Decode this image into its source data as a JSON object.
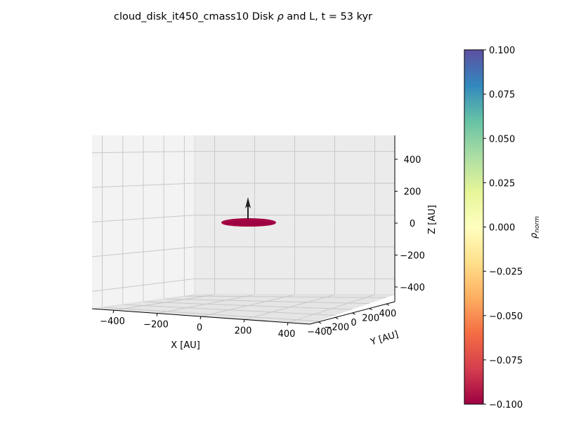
{
  "chart_data": {
    "type": "scatter",
    "projection": "3d",
    "title": "cloud_disk_it450_cmass10 Disk ρ and L, t = 53 kyr",
    "title_parts": {
      "prefix": "cloud_disk_it450_cmass10 Disk ",
      "symbol": "ρ",
      "suffix": " and L, t = 53 kyr"
    },
    "xlabel": "X [AU]",
    "ylabel": "Y [AU]",
    "zlabel": "Z [AU]",
    "xlim": [
      -500,
      500
    ],
    "ylim": [
      -500,
      500
    ],
    "zlim": [
      -500,
      500
    ],
    "x_ticks": [
      -400,
      -200,
      0,
      200,
      400
    ],
    "y_ticks": [
      -400,
      -200,
      0,
      200,
      400
    ],
    "z_ticks": [
      -400,
      -200,
      0,
      200,
      400
    ],
    "x_tick_labels": [
      "−400",
      "−200",
      "0",
      "200",
      "400"
    ],
    "y_tick_labels": [
      "−400",
      "−200",
      "0",
      "200",
      "400"
    ],
    "z_tick_labels": [
      "−400",
      "−200",
      "0",
      "200",
      "400"
    ],
    "grid": true,
    "disk": {
      "center": [
        0,
        0,
        0
      ],
      "radius": 140,
      "color": "#9e0142"
    },
    "angular_momentum_vector": {
      "origin": [
        0,
        0,
        0
      ],
      "direction": [
        0,
        0,
        1
      ],
      "color": "#222222"
    },
    "colorbar": {
      "label_base": "ρ",
      "label_sub": "norm",
      "min": -0.1,
      "max": 0.1,
      "colormap": "Spectral",
      "ticks": [
        0.1,
        0.075,
        0.05,
        0.025,
        0.0,
        -0.025,
        -0.05,
        -0.075,
        -0.1
      ],
      "tick_labels": [
        "0.100",
        "0.075",
        "0.050",
        "0.025",
        "0.000",
        "−0.025",
        "−0.050",
        "−0.075",
        "−0.100"
      ]
    }
  }
}
